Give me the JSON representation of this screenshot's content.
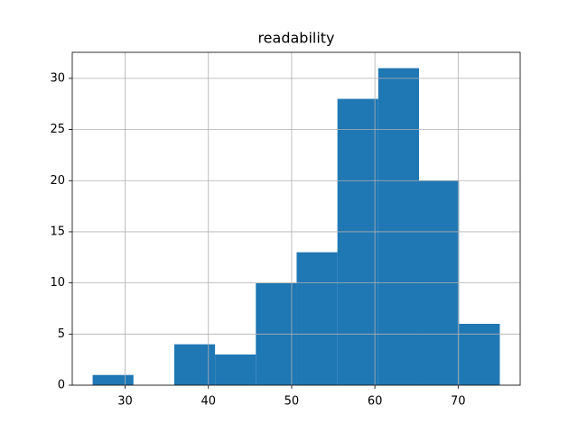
{
  "chart_data": {
    "type": "histogram",
    "title": "readability",
    "bins": [
      26.1,
      31.0,
      35.9,
      40.8,
      45.7,
      50.6,
      55.5,
      60.4,
      65.3,
      70.1,
      75.0
    ],
    "values": [
      1,
      0,
      4,
      3,
      10,
      13,
      28,
      31,
      20,
      6
    ],
    "color": "#1f77b4",
    "xlim": [
      23.65,
      77.45
    ],
    "xticks": [
      30,
      40,
      50,
      60,
      70
    ],
    "ylim": [
      0,
      32.55
    ],
    "yticks": [
      0,
      5,
      10,
      15,
      20,
      25,
      30
    ],
    "grid": true
  }
}
